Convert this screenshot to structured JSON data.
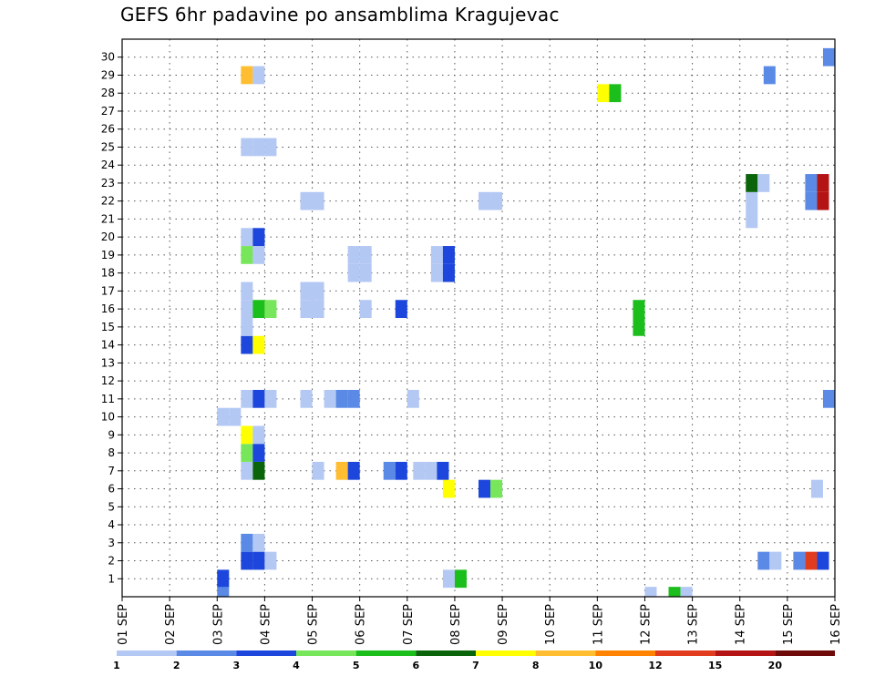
{
  "chart_data": {
    "type": "heatmap",
    "title": "GEFS 6hr padavine po ansamblima Kragujevac",
    "x_tick_labels": [
      "01 SEP",
      "02 SEP",
      "03 SEP",
      "04 SEP",
      "05 SEP",
      "06 SEP",
      "07 SEP",
      "08 SEP",
      "09 SEP",
      "10 SEP",
      "11 SEP",
      "12 SEP",
      "13 SEP",
      "14 SEP",
      "15 SEP",
      "16 SEP"
    ],
    "y_tick_labels": [
      "1",
      "2",
      "3",
      "4",
      "5",
      "6",
      "7",
      "8",
      "9",
      "10",
      "11",
      "12",
      "13",
      "14",
      "15",
      "16",
      "17",
      "18",
      "19",
      "20",
      "21",
      "22",
      "23",
      "24",
      "25",
      "26",
      "27",
      "28",
      "29",
      "30"
    ],
    "y_range": [
      0,
      30
    ],
    "x_steps_per_day": 4,
    "x_total_steps": 60,
    "grid": true,
    "colorbar": {
      "labels": [
        "1",
        "2",
        "3",
        "4",
        "5",
        "6",
        "7",
        "8",
        "10",
        "12",
        "15",
        "20"
      ],
      "colors": [
        "#b4c8f4",
        "#5a8ae6",
        "#1c46dc",
        "#78e65a",
        "#1cbe1c",
        "#0a640a",
        "#ffff00",
        "#ffbe32",
        "#ff8200",
        "#e13c1e",
        "#b41414",
        "#6e0a0a"
      ]
    },
    "cells": [
      {
        "m": 0,
        "t": 8.5,
        "c": 2
      },
      {
        "m": 0,
        "t": 27.5,
        "c": 0
      },
      {
        "m": 0,
        "t": 28.5,
        "c": 4
      },
      {
        "m": 1,
        "t": 10.5,
        "c": 2
      },
      {
        "m": 1,
        "t": 11.5,
        "c": 2
      },
      {
        "m": 1,
        "t": 12.5,
        "c": 0
      },
      {
        "m": 1,
        "t": 54,
        "c": 1
      },
      {
        "m": 1,
        "t": 55,
        "c": 0
      },
      {
        "m": 1,
        "t": 57,
        "c": 1
      },
      {
        "m": 1,
        "t": 58,
        "c": 9
      },
      {
        "m": 1,
        "t": 59,
        "c": 2
      },
      {
        "m": 2,
        "t": 10.5,
        "c": 1
      },
      {
        "m": 2,
        "t": 11.5,
        "c": 0
      },
      {
        "m": 5,
        "t": 27.5,
        "c": 6
      },
      {
        "m": 5,
        "t": 30.5,
        "c": 2
      },
      {
        "m": 5,
        "t": 31.5,
        "c": 3
      },
      {
        "m": 5,
        "t": 58.5,
        "c": 0
      },
      {
        "m": 6,
        "t": 10.5,
        "c": 0
      },
      {
        "m": 6,
        "t": 11.5,
        "c": 5
      },
      {
        "m": 6,
        "t": 16.5,
        "c": 0
      },
      {
        "m": 6,
        "t": 18.5,
        "c": 7
      },
      {
        "m": 6,
        "t": 19.5,
        "c": 2
      },
      {
        "m": 6,
        "t": 22.5,
        "c": 1
      },
      {
        "m": 6,
        "t": 23.5,
        "c": 2
      },
      {
        "m": 6,
        "t": 25,
        "c": 0
      },
      {
        "m": 6,
        "t": 26,
        "c": 0
      },
      {
        "m": 6,
        "t": 27,
        "c": 2
      },
      {
        "m": 7,
        "t": 10.5,
        "c": 3
      },
      {
        "m": 7,
        "t": 11.5,
        "c": 2
      },
      {
        "m": 8,
        "t": 10.5,
        "c": 6
      },
      {
        "m": 8,
        "t": 11.5,
        "c": 0
      },
      {
        "m": 9,
        "t": 8.5,
        "c": 0
      },
      {
        "m": 9,
        "t": 9.5,
        "c": 0
      },
      {
        "m": 10,
        "t": 10.5,
        "c": 0
      },
      {
        "m": 10,
        "t": 11.5,
        "c": 2
      },
      {
        "m": 10,
        "t": 12.5,
        "c": 0
      },
      {
        "m": 10,
        "t": 15.5,
        "c": 0
      },
      {
        "m": 10,
        "t": 17.5,
        "c": 0
      },
      {
        "m": 10,
        "t": 18.5,
        "c": 1
      },
      {
        "m": 10,
        "t": 19.5,
        "c": 1
      },
      {
        "m": 10,
        "t": 24.5,
        "c": 0
      },
      {
        "m": 10,
        "t": 59.5,
        "c": 1
      },
      {
        "m": 13,
        "t": 10.5,
        "c": 2
      },
      {
        "m": 13,
        "t": 11.5,
        "c": 6
      },
      {
        "m": 14,
        "t": 10.5,
        "c": 0
      },
      {
        "m": 14,
        "t": 43.5,
        "c": 4
      },
      {
        "m": 15,
        "t": 10.5,
        "c": 0
      },
      {
        "m": 15,
        "t": 11.5,
        "c": 4
      },
      {
        "m": 15,
        "t": 12.5,
        "c": 3
      },
      {
        "m": 15,
        "t": 15.5,
        "c": 0
      },
      {
        "m": 15,
        "t": 16.5,
        "c": 0
      },
      {
        "m": 15,
        "t": 20.5,
        "c": 0
      },
      {
        "m": 15,
        "t": 23.5,
        "c": 2
      },
      {
        "m": 15,
        "t": 43.5,
        "c": 4
      },
      {
        "m": 16,
        "t": 10.5,
        "c": 0
      },
      {
        "m": 16,
        "t": 15.5,
        "c": 0
      },
      {
        "m": 16,
        "t": 16.5,
        "c": 0
      },
      {
        "m": 17,
        "t": 19.5,
        "c": 0
      },
      {
        "m": 17,
        "t": 20.5,
        "c": 0
      },
      {
        "m": 17,
        "t": 26.5,
        "c": 0
      },
      {
        "m": 17,
        "t": 27.5,
        "c": 2
      },
      {
        "m": 18,
        "t": 10.5,
        "c": 3
      },
      {
        "m": 18,
        "t": 11.5,
        "c": 0
      },
      {
        "m": 18,
        "t": 19.5,
        "c": 0
      },
      {
        "m": 18,
        "t": 20.5,
        "c": 0
      },
      {
        "m": 18,
        "t": 26.5,
        "c": 0
      },
      {
        "m": 18,
        "t": 27.5,
        "c": 2
      },
      {
        "m": 19,
        "t": 10.5,
        "c": 0
      },
      {
        "m": 19,
        "t": 11.5,
        "c": 2
      },
      {
        "m": 20,
        "t": 53,
        "c": 0
      },
      {
        "m": 21,
        "t": 15.5,
        "c": 0
      },
      {
        "m": 21,
        "t": 16.5,
        "c": 0
      },
      {
        "m": 21,
        "t": 30.5,
        "c": 0
      },
      {
        "m": 21,
        "t": 31.5,
        "c": 0
      },
      {
        "m": 21,
        "t": 53,
        "c": 0
      },
      {
        "m": 21,
        "t": 58,
        "c": 1
      },
      {
        "m": 21,
        "t": 59,
        "c": 10
      },
      {
        "m": 22,
        "t": 53,
        "c": 5
      },
      {
        "m": 22,
        "t": 54,
        "c": 0
      },
      {
        "m": 22,
        "t": 58,
        "c": 1
      },
      {
        "m": 22,
        "t": 59,
        "c": 10
      },
      {
        "m": 24,
        "t": 10.5,
        "c": 0
      },
      {
        "m": 24,
        "t": 11.5,
        "c": 0
      },
      {
        "m": 24,
        "t": 12.5,
        "c": 0
      },
      {
        "m": 27,
        "t": 40.5,
        "c": 6
      },
      {
        "m": 27,
        "t": 41.5,
        "c": 4
      },
      {
        "m": 28,
        "t": 10.5,
        "c": 7
      },
      {
        "m": 28,
        "t": 11.5,
        "c": 0
      },
      {
        "m": 28,
        "t": 54.5,
        "c": 1
      },
      {
        "m": 29,
        "t": 59.5,
        "c": 1
      },
      {
        "m": -1,
        "t": 8.5,
        "c": 1
      },
      {
        "m": -1,
        "t": 44.5,
        "c": 0
      },
      {
        "m": -1,
        "t": 46.5,
        "c": 4
      },
      {
        "m": -1,
        "t": 47.5,
        "c": 0
      }
    ]
  }
}
